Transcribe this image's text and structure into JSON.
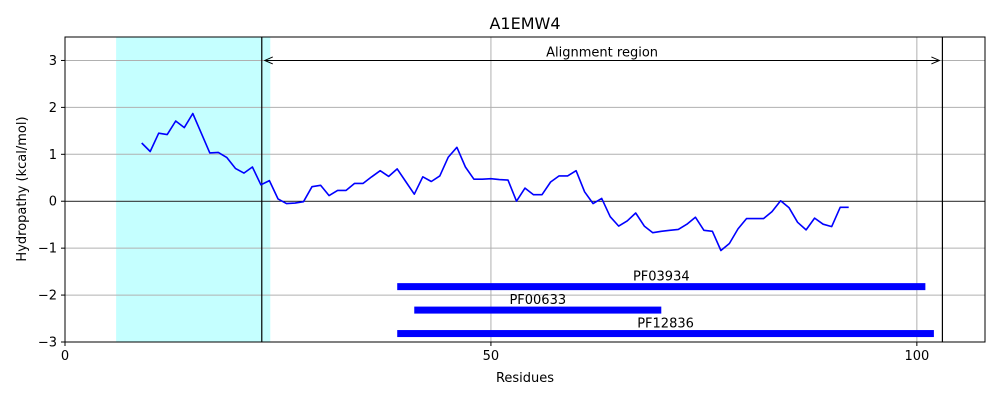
{
  "chart_data": {
    "type": "line",
    "title": "A1EMW4",
    "xlabel": "Residues",
    "ylabel": "Hydropathy (kcal/mol)",
    "xlim": [
      0,
      108
    ],
    "ylim": [
      -3,
      3.5
    ],
    "x_ticks": [
      0,
      50,
      100
    ],
    "y_ticks": [
      -3,
      -2,
      -1,
      0,
      1,
      2,
      3
    ],
    "grid": true,
    "colors": {
      "line": "#0000ff",
      "shade": "#c5ffff",
      "domain": "#0000ff",
      "zero_line": "#000000"
    },
    "shaded_region": {
      "x0": 6,
      "x1": 24.1
    },
    "alignment_region": {
      "label": "Alignment region",
      "x0": 23.1,
      "x1": 103,
      "y": 3
    },
    "series": [
      {
        "x": [
          9,
          10,
          11,
          12,
          13,
          14,
          15,
          16,
          17,
          18,
          19,
          20,
          21,
          22,
          23,
          24,
          25,
          26,
          27,
          28,
          29,
          30,
          31,
          32,
          33,
          34,
          35,
          36,
          37,
          38,
          39,
          40,
          41,
          42,
          43,
          44,
          45,
          46,
          47,
          48,
          49,
          50,
          51,
          52,
          53,
          54,
          55,
          56,
          57,
          58,
          59,
          60,
          61,
          62,
          63,
          64,
          65,
          66,
          67,
          68,
          69,
          70,
          71,
          72,
          73,
          74,
          75,
          76,
          77,
          78,
          79,
          80,
          81,
          82,
          83,
          84,
          85,
          86,
          87,
          88,
          89,
          90,
          91,
          92
        ],
        "values": [
          1.24,
          1.06,
          1.45,
          1.42,
          1.71,
          1.57,
          1.87,
          1.45,
          1.03,
          1.04,
          0.93,
          0.7,
          0.6,
          0.73,
          0.35,
          0.44,
          0.05,
          -0.05,
          -0.04,
          -0.01,
          0.31,
          0.34,
          0.12,
          0.23,
          0.23,
          0.38,
          0.38,
          0.52,
          0.65,
          0.53,
          0.69,
          0.42,
          0.15,
          0.52,
          0.42,
          0.54,
          0.94,
          1.15,
          0.73,
          0.47,
          0.47,
          0.48,
          0.46,
          0.45,
          0.0,
          0.28,
          0.14,
          0.14,
          0.41,
          0.54,
          0.54,
          0.65,
          0.2,
          -0.05,
          0.06,
          -0.33,
          -0.53,
          -0.42,
          -0.25,
          -0.53,
          -0.67,
          -0.64,
          -0.62,
          -0.6,
          -0.49,
          -0.34,
          -0.62,
          -0.64,
          -1.05,
          -0.9,
          -0.59,
          -0.37,
          -0.37,
          -0.37,
          -0.22,
          0.01,
          -0.14,
          -0.45,
          -0.61,
          -0.36,
          -0.49,
          -0.54,
          -0.13,
          -0.13
        ]
      }
    ],
    "domains": [
      {
        "name": "PF03934",
        "start": 39,
        "end": 101,
        "y": -1.82
      },
      {
        "name": "PF00633",
        "start": 41,
        "end": 70,
        "y": -2.32
      },
      {
        "name": "PF12836",
        "start": 39,
        "end": 102,
        "y": -2.82
      }
    ]
  }
}
